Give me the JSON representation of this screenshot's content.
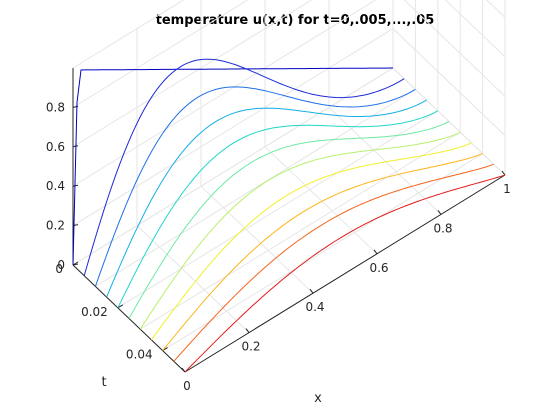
{
  "chart_data": {
    "type": "line",
    "title": "temperature u(x,t) for t=0,.005,...,.05",
    "xlabel": "x",
    "ylabel": "t",
    "zlabel": "",
    "x_ticks": [
      "0",
      "0.2",
      "0.4",
      "0.6",
      "0.8",
      "1"
    ],
    "t_ticks": [
      "0",
      "0.02",
      "0.04"
    ],
    "z_ticks": [
      "0",
      "0.2",
      "0.4",
      "0.6",
      "0.8"
    ],
    "xlim": [
      0,
      1
    ],
    "tlim": [
      0,
      0.05
    ],
    "zlim": [
      0,
      1
    ],
    "grid": true,
    "series": [
      {
        "t": 0.0,
        "peak": 0.975,
        "color": "#0000bf"
      },
      {
        "t": 0.005,
        "peak": 0.76,
        "color": "#1a2bd9"
      },
      {
        "t": 0.01,
        "peak": 0.64,
        "color": "#1f70e8"
      },
      {
        "t": 0.015,
        "peak": 0.55,
        "color": "#14aee6"
      },
      {
        "t": 0.02,
        "peak": 0.475,
        "color": "#20d6c9"
      },
      {
        "t": 0.025,
        "peak": 0.41,
        "color": "#6fe8a3"
      },
      {
        "t": 0.03,
        "peak": 0.355,
        "color": "#b8f06c"
      },
      {
        "t": 0.035,
        "peak": 0.31,
        "color": "#f2ef2a"
      },
      {
        "t": 0.04,
        "peak": 0.265,
        "color": "#fcb519"
      },
      {
        "t": 0.045,
        "peak": 0.23,
        "color": "#f5641b"
      },
      {
        "t": 0.05,
        "peak": 0.195,
        "color": "#e31a1a"
      }
    ]
  }
}
